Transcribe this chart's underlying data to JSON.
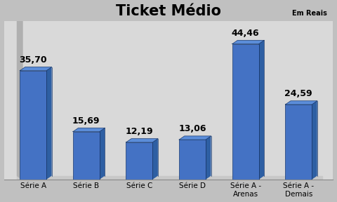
{
  "title": "Ticket Médio",
  "subtitle": "Em Reais",
  "categories": [
    "Série A",
    "Série B",
    "Série C",
    "Série D",
    "Série A -\nArenas",
    "Série A -\nDemais"
  ],
  "values": [
    35.7,
    15.69,
    12.19,
    13.06,
    44.46,
    24.59
  ],
  "labels": [
    "35,70",
    "15,69",
    "12,19",
    "13,06",
    "44,46",
    "24,59"
  ],
  "bar_color_face": "#4472C4",
  "bar_color_dark": "#2E5FA3",
  "bar_color_top": "#5B8DD9",
  "background_color": "#C0C0C0",
  "plot_bg_color": "#D9D9D9",
  "wall_color": "#B0B0B0",
  "floor_color": "#C8C8C8",
  "ylim": [
    0,
    52
  ],
  "title_fontsize": 15,
  "label_fontsize": 9,
  "tick_fontsize": 7.5,
  "subtitle_fontsize": 7
}
